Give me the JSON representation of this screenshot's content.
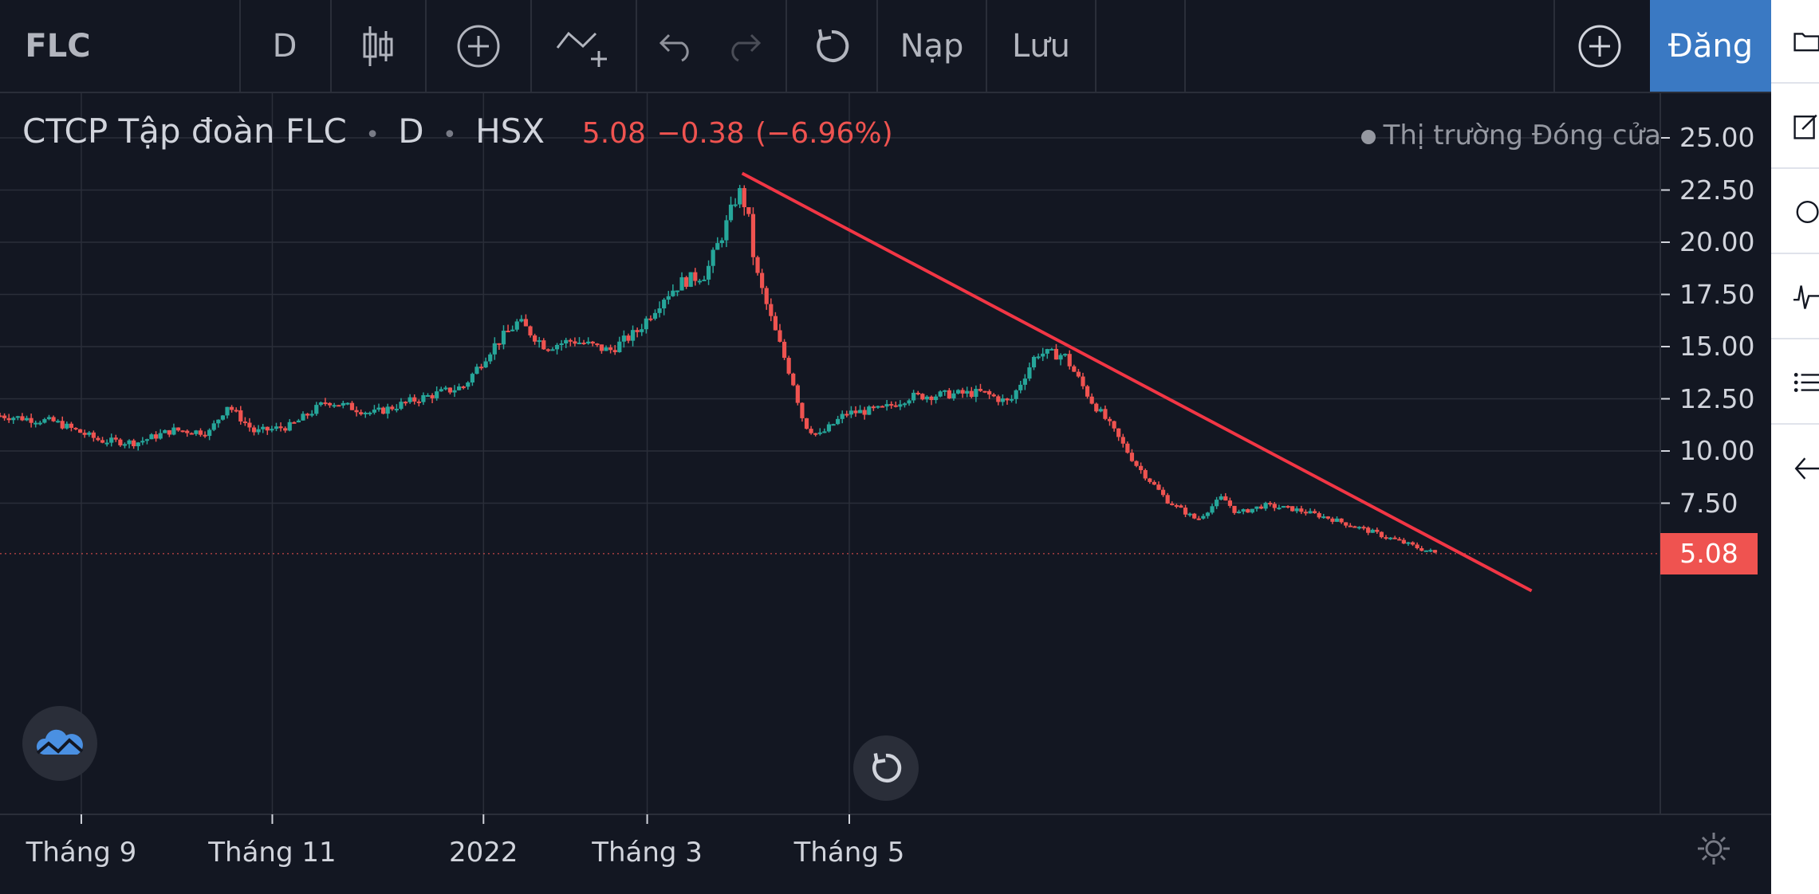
{
  "toolbar": {
    "symbol": "FLC",
    "interval": "D",
    "candles_icon": "candlestick-icon",
    "compare_icon": "plus-circle-icon",
    "indicators_icon": "indicators-icon",
    "undo_icon": "undo-icon",
    "redo_icon": "redo-icon",
    "refresh_icon": "refresh-icon",
    "load_label": "Nạp",
    "save_label": "Lưu",
    "add_icon": "plus-circle-icon",
    "signup_label": "Đăng"
  },
  "sidebar": {
    "items": [
      {
        "icon": "folder-icon"
      },
      {
        "icon": "edit-icon"
      },
      {
        "icon": "circle-icon"
      },
      {
        "icon": "pulse-icon"
      },
      {
        "icon": "list-icon"
      },
      {
        "icon": "arrow-left-icon"
      }
    ]
  },
  "legend": {
    "name": "CTCP Tập đoàn FLC",
    "interval": "D",
    "exchange": "HSX",
    "last": "5.08",
    "change": "−0.38",
    "change_pct": "(−6.96%)",
    "separator": "•"
  },
  "market_status": "Thị trường Đóng cửa",
  "price_badge": "5.08",
  "colors": {
    "background": "#131722",
    "up": "#26a69a",
    "down": "#ef5350",
    "trendline": "#f23645",
    "signup": "#2962ff"
  },
  "chart_data": {
    "type": "candlestick",
    "title": "CTCP Tập đoàn FLC · D · HSX",
    "ylim": [
      3.2,
      26.5
    ],
    "y_ticks": [
      "25.00",
      "22.50",
      "20.00",
      "17.50",
      "15.00",
      "12.50",
      "10.00",
      "7.50"
    ],
    "x_ticks": [
      "Tháng 9",
      "Tháng 11",
      "2022",
      "Tháng 3",
      "Tháng 5"
    ],
    "current_price": 5.08,
    "trendline": {
      "start": [
        0.408,
        23.3
      ],
      "end": [
        0.842,
        3.3
      ]
    },
    "grid": true,
    "anchors": [
      [
        0.0,
        11.7
      ],
      [
        0.03,
        11.4
      ],
      [
        0.055,
        10.5
      ],
      [
        0.075,
        10.4
      ],
      [
        0.095,
        11.0
      ],
      [
        0.115,
        10.9
      ],
      [
        0.125,
        12.2
      ],
      [
        0.14,
        10.9
      ],
      [
        0.16,
        11.2
      ],
      [
        0.18,
        12.4
      ],
      [
        0.205,
        11.8
      ],
      [
        0.23,
        12.5
      ],
      [
        0.255,
        13.1
      ],
      [
        0.27,
        14.9
      ],
      [
        0.285,
        16.2
      ],
      [
        0.3,
        15.0
      ],
      [
        0.315,
        15.3
      ],
      [
        0.335,
        14.8
      ],
      [
        0.35,
        15.7
      ],
      [
        0.365,
        17.4
      ],
      [
        0.375,
        18.1
      ],
      [
        0.388,
        18.5
      ],
      [
        0.4,
        21.0
      ],
      [
        0.406,
        22.5
      ],
      [
        0.411,
        21.5
      ],
      [
        0.413,
        19.9
      ],
      [
        0.416,
        18.5
      ],
      [
        0.425,
        16.0
      ],
      [
        0.436,
        13.3
      ],
      [
        0.442,
        11.3
      ],
      [
        0.45,
        10.7
      ],
      [
        0.465,
        11.8
      ],
      [
        0.485,
        12.0
      ],
      [
        0.5,
        12.6
      ],
      [
        0.52,
        12.7
      ],
      [
        0.54,
        12.8
      ],
      [
        0.555,
        12.3
      ],
      [
        0.57,
        14.7
      ],
      [
        0.585,
        14.6
      ],
      [
        0.6,
        12.4
      ],
      [
        0.608,
        11.5
      ],
      [
        0.615,
        10.6
      ],
      [
        0.625,
        9.3
      ],
      [
        0.642,
        7.6
      ],
      [
        0.658,
        6.7
      ],
      [
        0.672,
        7.8
      ],
      [
        0.68,
        7.0
      ],
      [
        0.695,
        7.4
      ],
      [
        0.712,
        7.2
      ],
      [
        0.73,
        6.8
      ],
      [
        0.748,
        6.3
      ],
      [
        0.765,
        5.8
      ],
      [
        0.78,
        5.35
      ],
      [
        0.79,
        5.08
      ]
    ]
  }
}
